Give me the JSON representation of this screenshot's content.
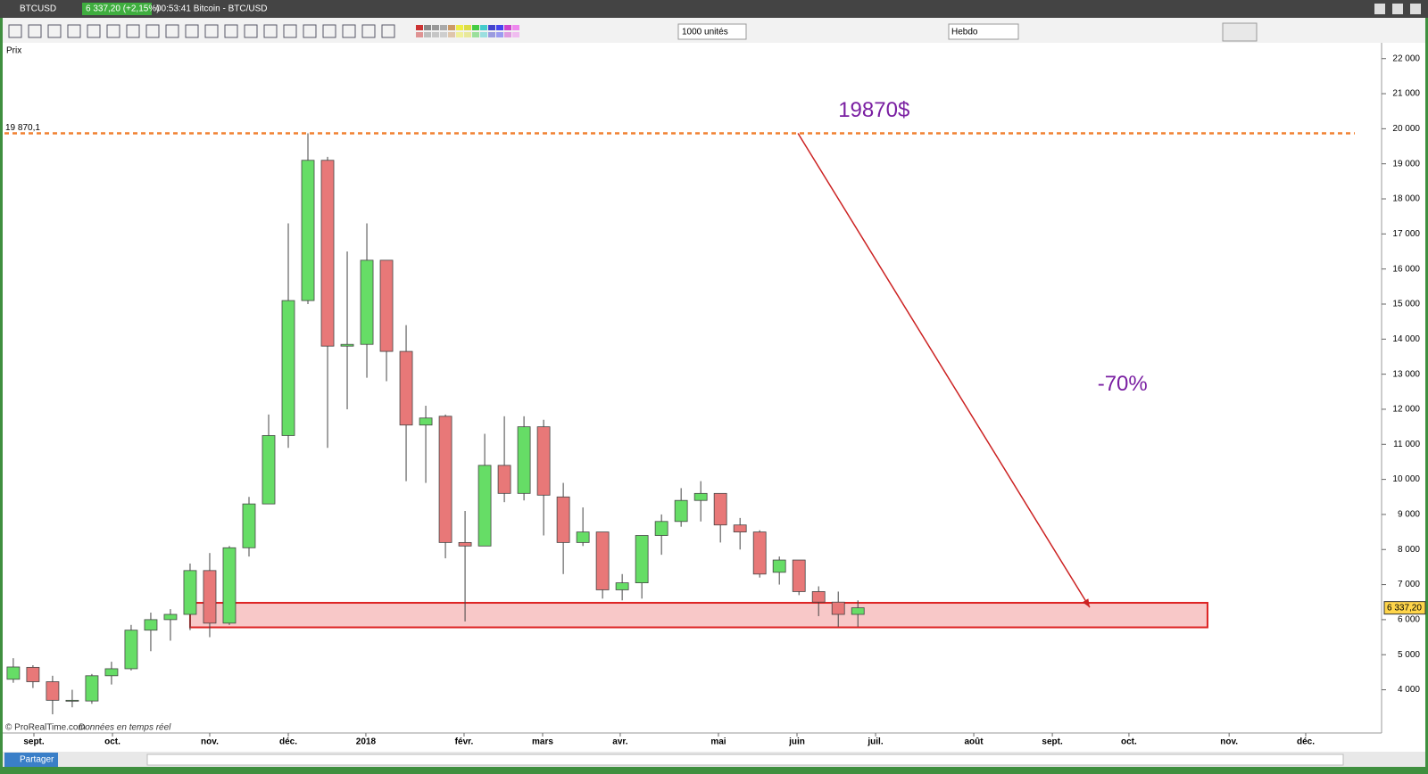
{
  "ui": {
    "symbol": "BTCUSD",
    "quote": "6 337,20 (+2,15%)",
    "info": "00:53:41 Bitcoin - BTC/USD",
    "units": "1000 unités",
    "period": "Hebdo",
    "price_tab": "Prix",
    "copyright": "© ProRealTime.com",
    "realtime": "Données en temps réel",
    "share": "Partager"
  },
  "chart_data": {
    "type": "candlestick",
    "categories": [
      null,
      null,
      null,
      null,
      null,
      null,
      null,
      null,
      null,
      null,
      null,
      null,
      null,
      null,
      null,
      null,
      null,
      null,
      null,
      null,
      null,
      null,
      null,
      null,
      null,
      null,
      null,
      null,
      null,
      null,
      null,
      null,
      null,
      null,
      null,
      null,
      null,
      null,
      null,
      null,
      null,
      null,
      null,
      null
    ],
    "open": [
      4300,
      4640,
      4230,
      3690,
      3680,
      4400,
      4600,
      5700,
      6000,
      6150,
      7400,
      5900,
      8050,
      9300,
      11250,
      15100,
      19100,
      13800,
      13850,
      16250,
      13650,
      11550,
      11800,
      8200,
      8100,
      10400,
      9600,
      11500,
      9500,
      8200,
      8500,
      6850,
      7050,
      8400,
      8800,
      9400,
      9600,
      8700,
      8500,
      7350,
      7700,
      6800,
      6500,
      6150
    ],
    "high": [
      4900,
      4700,
      4400,
      4000,
      4450,
      4800,
      5850,
      6200,
      6300,
      7600,
      7900,
      8100,
      9500,
      11850,
      17300,
      19870,
      19200,
      16500,
      17300,
      16200,
      14400,
      12100,
      11850,
      9100,
      11300,
      11800,
      11800,
      11700,
      9900,
      9200,
      8500,
      7300,
      8400,
      9000,
      9750,
      9950,
      9600,
      8900,
      8550,
      7800,
      7700,
      6950,
      6800,
      6550
    ],
    "low": [
      4200,
      4050,
      3300,
      3500,
      3600,
      4150,
      4550,
      5100,
      5400,
      5700,
      5500,
      5850,
      7800,
      9300,
      10900,
      15000,
      10900,
      12000,
      12900,
      12800,
      9950,
      9900,
      7750,
      5950,
      8100,
      9350,
      9400,
      8400,
      7300,
      8100,
      6600,
      6550,
      6600,
      7850,
      8650,
      8800,
      8200,
      8000,
      7200,
      7000,
      6700,
      6100,
      5800,
      5800
    ],
    "close": [
      4650,
      4230,
      3700,
      3700,
      4400,
      4600,
      5700,
      6000,
      6150,
      7400,
      5900,
      8050,
      9300,
      11250,
      15100,
      19100,
      13800,
      13850,
      16250,
      13650,
      11550,
      11750,
      8200,
      8100,
      10400,
      9600,
      11500,
      9550,
      8200,
      8500,
      6850,
      7050,
      8400,
      8800,
      9400,
      9600,
      8700,
      8500,
      7300,
      7700,
      6800,
      6500,
      6150,
      6337.2
    ],
    "up_color": "#66dd66",
    "down_color": "#e87878",
    "xlim": [
      -0.45,
      68.3
    ],
    "xticks": [
      {
        "value": 1.05,
        "label": "sept."
      },
      {
        "value": 5.05,
        "label": "oct."
      },
      {
        "value": 10,
        "label": "nov."
      },
      {
        "value": 14,
        "label": "déc."
      },
      {
        "value": 17.95,
        "label": "2018"
      },
      {
        "value": 22.95,
        "label": "févr."
      },
      {
        "value": 26.95,
        "label": "mars"
      },
      {
        "value": 30.9,
        "label": "avr."
      },
      {
        "value": 35.9,
        "label": "mai"
      },
      {
        "value": 39.9,
        "label": "juin"
      },
      {
        "value": 43.9,
        "label": "juil."
      },
      {
        "value": 48.9,
        "label": "août"
      },
      {
        "value": 52.9,
        "label": "sept."
      },
      {
        "value": 56.8,
        "label": "oct."
      },
      {
        "value": 61.9,
        "label": "nov."
      },
      {
        "value": 65.8,
        "label": "déc."
      }
    ],
    "ylim": [
      3200,
      22400
    ],
    "yticks": [
      {
        "value": 4000,
        "label": "4 000"
      },
      {
        "value": 5000,
        "label": "5 000"
      },
      {
        "value": 6000,
        "label": "6 000"
      },
      {
        "value": 7000,
        "label": "7 000"
      },
      {
        "value": 8000,
        "label": "8 000"
      },
      {
        "value": 9000,
        "label": "9 000"
      },
      {
        "value": 10000,
        "label": "10 000"
      },
      {
        "value": 11000,
        "label": "11 000"
      },
      {
        "value": 12000,
        "label": "12 000"
      },
      {
        "value": 13000,
        "label": "13 000"
      },
      {
        "value": 14000,
        "label": "14 000"
      },
      {
        "value": 15000,
        "label": "15 000"
      },
      {
        "value": 16000,
        "label": "16 000"
      },
      {
        "value": 17000,
        "label": "17 000"
      },
      {
        "value": 18000,
        "label": "18 000"
      },
      {
        "value": 19000,
        "label": "19 000"
      },
      {
        "value": 20000,
        "label": "20 000"
      },
      {
        "value": 21000,
        "label": "21 000"
      },
      {
        "value": 22000,
        "label": "22 000"
      }
    ],
    "resistance": {
      "value": 19870.1,
      "label": "19 870,1",
      "color": "#f08030"
    },
    "last_price": {
      "value": 6337.2,
      "label": "6 337,20"
    },
    "zone": {
      "low": 5780,
      "high": 6480,
      "x0": 9.0,
      "x1": 60.8,
      "color": "#dd2222"
    },
    "arrow": {
      "x0": 39.95,
      "y0": 19870,
      "x1": 54.8,
      "y1": 6350,
      "color": "#cc2222"
    },
    "annotations": [
      {
        "text": "19870$",
        "x": 42,
        "y": 20500
      },
      {
        "text": "-70%",
        "x": 55.2,
        "y": 12700
      }
    ],
    "annotation_color": "#7a1fa2"
  }
}
